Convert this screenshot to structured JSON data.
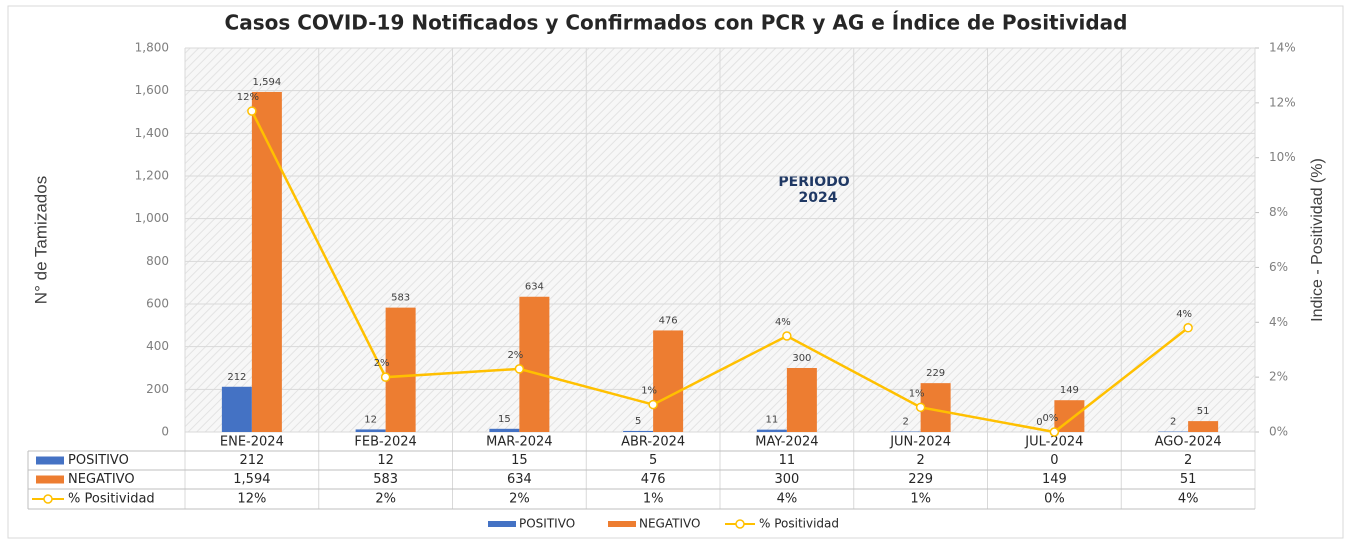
{
  "chart_data": {
    "type": "bar",
    "title": "Casos COVID-19 Notificados y Confirmados con PCR y AG e Índice de Positividad",
    "y_label": "N° de Tamizados",
    "y2_label": "Indice - Positividad (%)",
    "annotation": [
      "PERIODO",
      "2024"
    ],
    "categories": [
      "ENE-2024",
      "FEB-2024",
      "MAR-2024",
      "ABR-2024",
      "MAY-2024",
      "JUN-2024",
      "JUL-2024",
      "AGO-2024"
    ],
    "series": [
      {
        "name": "POSITIVO",
        "type": "bar",
        "color": "#4472C4",
        "values": [
          212,
          12,
          15,
          5,
          11,
          2,
          0,
          2
        ]
      },
      {
        "name": "NEGATIVO",
        "type": "bar",
        "color": "#ED7D31",
        "values": [
          1594,
          583,
          634,
          476,
          300,
          229,
          149,
          51
        ],
        "value_labels": [
          "1,594",
          "583",
          "634",
          "476",
          "300",
          "229",
          "149",
          "51"
        ]
      },
      {
        "name": "% Positividad",
        "type": "line",
        "axis": "y2",
        "color": "#FFC000",
        "values": [
          11.7,
          2.0,
          2.3,
          1.0,
          3.5,
          0.9,
          0,
          3.8
        ],
        "value_labels": [
          "12%",
          "2%",
          "2%",
          "1%",
          "4%",
          "1%",
          "0%",
          "4%"
        ]
      }
    ],
    "ylim": [
      0,
      1800
    ],
    "yticks": [
      0,
      200,
      400,
      600,
      800,
      {
        "value": 1000,
        "label": "1,000"
      },
      {
        "value": 1200,
        "label": "1,200"
      },
      {
        "value": 1400,
        "label": "1,400"
      },
      {
        "value": 1600,
        "label": "1,600"
      },
      {
        "value": 1800,
        "label": "1,800"
      }
    ],
    "y2lim": [
      0,
      14
    ],
    "y2ticks": [
      {
        "value": 0,
        "label": "0%"
      },
      {
        "value": 2,
        "label": "2%"
      },
      {
        "value": 4,
        "label": "4%"
      },
      {
        "value": 6,
        "label": "6%"
      },
      {
        "value": 8,
        "label": "8%"
      },
      {
        "value": 10,
        "label": "10%"
      },
      {
        "value": 12,
        "label": "12%"
      },
      {
        "value": 14,
        "label": "14%"
      }
    ],
    "grid": true
  }
}
